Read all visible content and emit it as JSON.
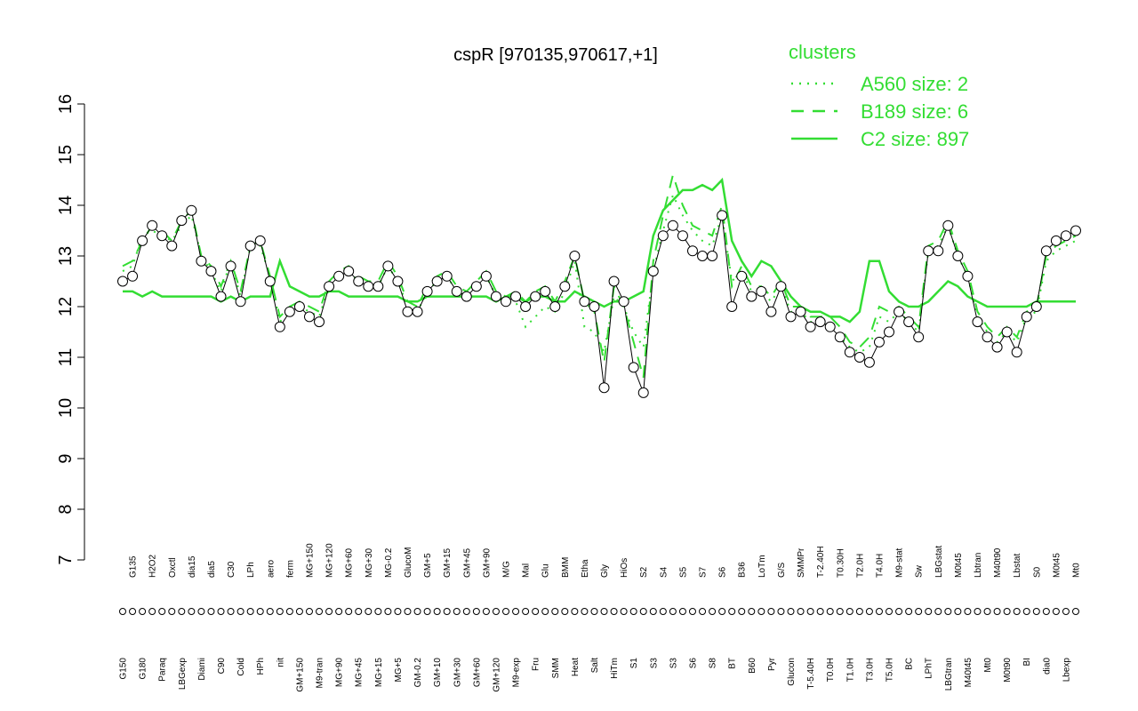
{
  "chart_data": {
    "type": "line",
    "title": "cspR [970135,970617,+1]",
    "legend_title": "clusters",
    "legend_position": "top-right",
    "marker_fill": "#ffffff",
    "color": "#000000",
    "categories": [
      "G150",
      "G135",
      "G180",
      "H2O2",
      "Paraq",
      "Oxctl",
      "LBGexp",
      "dia15",
      "Diami",
      "dia5",
      "C90",
      "C30",
      "Cold",
      "LPh",
      "HPh",
      "aero",
      "nit",
      "ferm",
      "GM+150",
      "MG+150",
      "M9-tran",
      "MG+120",
      "MG+90",
      "MG+60",
      "MG+45",
      "MG+30",
      "MG+15",
      "MG-0.2",
      "MG+5",
      "GlucoM",
      "GM-0.2",
      "GM+5",
      "GM+10",
      "GM+15",
      "GM+30",
      "GM+45",
      "GM+60",
      "GM+90",
      "GM+120",
      "M/G",
      "M9-exp",
      "Mal",
      "Fru",
      "Glu",
      "SMM",
      "BMM",
      "Heat",
      "Etha",
      "Salt",
      "Gly",
      "HiTm",
      "HiOs",
      "S1",
      "S2",
      "S3",
      "S4",
      "S3",
      "S5",
      "S6",
      "S7",
      "S8",
      "S6",
      "BT",
      "B36",
      "B60",
      "LoTm",
      "Pyr",
      "G/S",
      "Glucon",
      "SMMPr",
      "T-5.40H",
      "T-2.40H",
      "T0.0H",
      "T0.30H",
      "T1.0H",
      "T2.0H",
      "T3.0H",
      "T4.0H",
      "T5.0H",
      "M9-stat",
      "BC",
      "Sw",
      "LPhT",
      "LBGstat",
      "LBGtran",
      "M0t45",
      "M40t45",
      "Lbtran",
      "Mt0",
      "M40t90",
      "M0t90",
      "Lbstat",
      "BI",
      "S0",
      "dia0",
      "M0t45",
      "Lbexp",
      "Mt0"
    ],
    "values": [
      12.5,
      12.6,
      13.3,
      13.6,
      13.4,
      13.2,
      13.7,
      13.9,
      12.9,
      12.7,
      12.2,
      12.8,
      12.1,
      13.2,
      13.3,
      12.5,
      11.6,
      11.9,
      12.0,
      11.8,
      11.7,
      12.4,
      12.6,
      12.7,
      12.5,
      12.4,
      12.4,
      12.8,
      12.5,
      11.9,
      11.9,
      12.3,
      12.5,
      12.6,
      12.3,
      12.2,
      12.4,
      12.6,
      12.2,
      12.1,
      12.2,
      12.0,
      12.2,
      12.3,
      12.0,
      12.4,
      13.0,
      12.1,
      12.0,
      10.4,
      12.5,
      12.1,
      10.8,
      10.3,
      12.7,
      13.4,
      13.6,
      13.4,
      13.1,
      13.0,
      13.0,
      13.8,
      12.0,
      12.6,
      12.2,
      12.3,
      11.9,
      12.4,
      11.8,
      11.9,
      11.6,
      11.7,
      11.6,
      11.4,
      11.1,
      11.0,
      10.9,
      11.3,
      11.5,
      11.9,
      11.7,
      11.4,
      13.1,
      13.1,
      13.6,
      13.0,
      12.6,
      11.7,
      11.4,
      11.2,
      11.5,
      11.1,
      11.8,
      12.0,
      13.1,
      13.3,
      13.4,
      13.5
    ],
    "series": [
      {
        "name": "A560 size: 2",
        "color": "#33dd33",
        "dash": "dotted",
        "values": [
          12.7,
          12.8,
          13.4,
          13.5,
          13.4,
          13.3,
          13.6,
          13.8,
          13.0,
          12.7,
          12.3,
          12.9,
          12.2,
          13.2,
          13.2,
          12.6,
          11.7,
          11.9,
          12.0,
          11.9,
          11.8,
          12.4,
          12.6,
          12.7,
          12.5,
          12.4,
          12.4,
          12.8,
          12.5,
          12.0,
          11.9,
          12.3,
          12.5,
          12.6,
          12.3,
          12.2,
          12.4,
          12.6,
          12.2,
          12.1,
          12.1,
          11.6,
          11.8,
          12.0,
          11.9,
          12.3,
          12.9,
          11.6,
          11.5,
          11.1,
          12.2,
          12.0,
          11.5,
          11.2,
          12.7,
          13.5,
          14.2,
          13.8,
          13.5,
          13.3,
          13.2,
          13.8,
          12.5,
          12.7,
          12.3,
          12.3,
          12.1,
          12.4,
          11.9,
          11.9,
          11.7,
          11.7,
          11.6,
          11.4,
          11.2,
          11.1,
          11.2,
          11.8,
          11.7,
          11.9,
          11.7,
          11.5,
          13.1,
          13.2,
          13.6,
          13.0,
          12.6,
          11.8,
          11.5,
          11.3,
          11.5,
          11.3,
          11.8,
          11.9,
          12.9,
          13.1,
          13.2,
          13.3
        ]
      },
      {
        "name": "B189 size: 6",
        "color": "#33dd33",
        "dash": "dashed",
        "values": [
          12.8,
          12.9,
          13.3,
          13.6,
          13.5,
          13.3,
          13.7,
          13.9,
          13.0,
          12.8,
          12.4,
          12.9,
          12.3,
          13.2,
          13.3,
          12.6,
          11.8,
          12.0,
          12.1,
          12.0,
          11.9,
          12.5,
          12.7,
          12.8,
          12.6,
          12.5,
          12.5,
          12.9,
          12.6,
          12.1,
          12.0,
          12.4,
          12.6,
          12.7,
          12.4,
          12.3,
          12.5,
          12.7,
          12.3,
          12.2,
          12.3,
          12.1,
          12.3,
          12.4,
          12.1,
          12.5,
          13.0,
          12.1,
          11.9,
          10.9,
          12.4,
          12.0,
          11.3,
          10.6,
          12.9,
          13.8,
          14.6,
          14.0,
          13.6,
          13.5,
          13.4,
          14.0,
          12.4,
          12.8,
          12.4,
          12.4,
          12.2,
          12.5,
          12.0,
          12.0,
          11.8,
          11.8,
          11.8,
          11.6,
          11.3,
          11.2,
          11.4,
          12.0,
          11.9,
          12.0,
          11.8,
          11.6,
          13.2,
          13.3,
          13.7,
          13.1,
          12.7,
          11.9,
          11.6,
          11.4,
          11.6,
          11.4,
          11.9,
          12.0,
          13.0,
          13.2,
          13.3,
          13.4
        ]
      },
      {
        "name": "C2 size: 897",
        "color": "#33dd33",
        "dash": "solid",
        "values": [
          12.3,
          12.3,
          12.2,
          12.3,
          12.2,
          12.2,
          12.2,
          12.2,
          12.2,
          12.2,
          12.1,
          12.2,
          12.1,
          12.2,
          12.2,
          12.2,
          12.9,
          12.4,
          12.3,
          12.2,
          12.2,
          12.3,
          12.3,
          12.2,
          12.2,
          12.2,
          12.2,
          12.2,
          12.2,
          12.1,
          12.1,
          12.2,
          12.2,
          12.2,
          12.2,
          12.2,
          12.2,
          12.2,
          12.1,
          12.2,
          12.2,
          12.1,
          12.2,
          12.2,
          12.1,
          12.1,
          12.3,
          12.2,
          12.1,
          12.0,
          12.1,
          12.1,
          12.2,
          12.3,
          13.4,
          13.9,
          14.1,
          14.3,
          14.3,
          14.4,
          14.3,
          14.5,
          13.3,
          12.9,
          12.6,
          12.9,
          12.8,
          12.5,
          12.2,
          12.0,
          11.9,
          11.9,
          11.8,
          11.8,
          11.7,
          11.9,
          12.9,
          12.9,
          12.3,
          12.1,
          12.0,
          12.0,
          12.1,
          12.3,
          12.5,
          12.4,
          12.2,
          12.1,
          12.0,
          12.0,
          12.0,
          12.0,
          12.0,
          12.1,
          12.1,
          12.1,
          12.1,
          12.1
        ]
      }
    ],
    "ylim": [
      7,
      16
    ],
    "yticks": [
      7,
      8,
      9,
      10,
      11,
      12,
      13,
      14,
      15,
      16
    ]
  }
}
